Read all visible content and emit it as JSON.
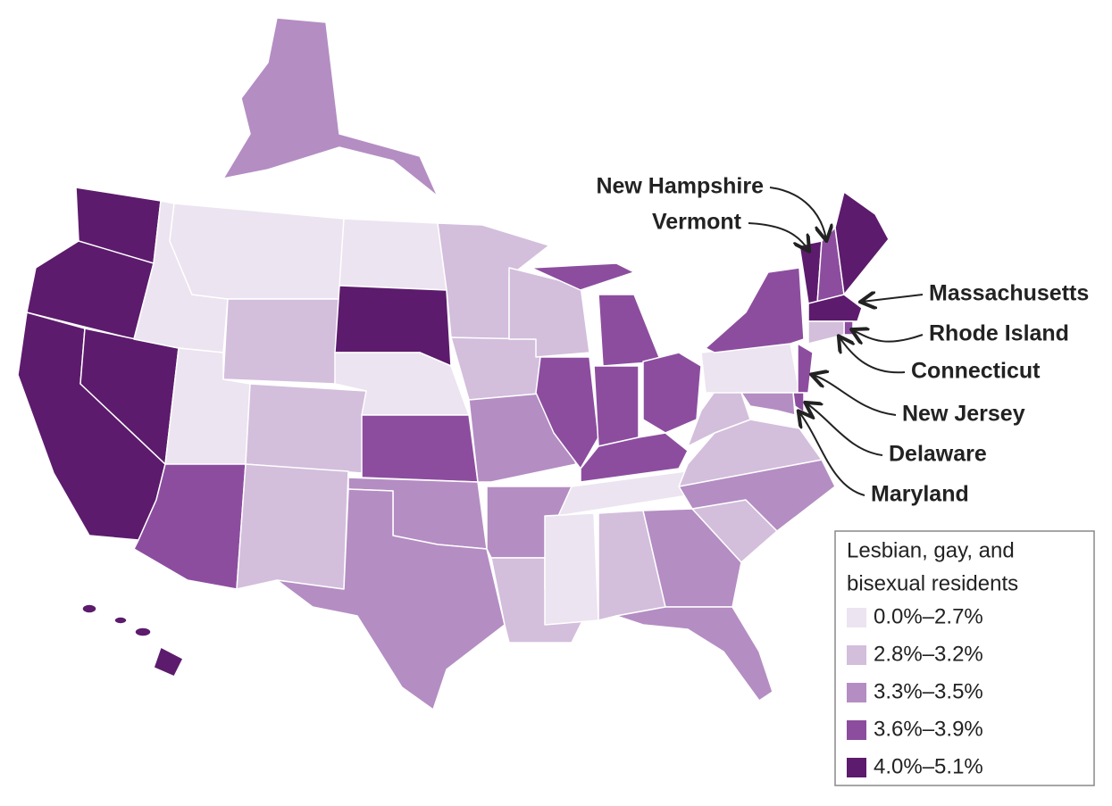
{
  "annotations": [
    "New Hampshire",
    "Vermont",
    "Massachusetts",
    "Rhode Island",
    "Connecticut",
    "New Jersey",
    "Delaware",
    "Maryland"
  ],
  "legend": {
    "title_lines": [
      "Lesbian, gay, and",
      "bisexual residents"
    ],
    "items": [
      {
        "label": "0.0%–2.7%",
        "color": "#ece4f0"
      },
      {
        "label": "2.8%–3.2%",
        "color": "#d3bedc"
      },
      {
        "label": "3.3%–3.5%",
        "color": "#b48dc3"
      },
      {
        "label": "3.6%–3.9%",
        "color": "#8c4d9f"
      },
      {
        "label": "4.0%–5.1%",
        "color": "#5c1b6c"
      }
    ]
  }
}
